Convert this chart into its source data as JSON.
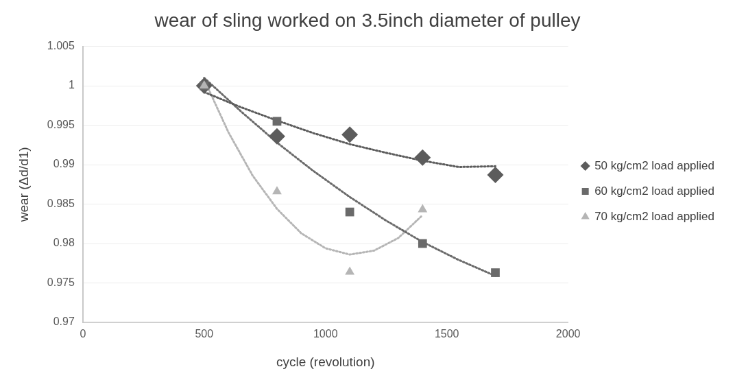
{
  "chart_data": {
    "type": "scatter",
    "title": "wear of sling worked on 3.5inch diameter of pulley",
    "xlabel": "cycle (revolution)",
    "ylabel": "wear (Δd/d1)",
    "xlim": [
      0,
      2000
    ],
    "xticks": [
      0,
      500,
      1000,
      1500,
      2000
    ],
    "ylim": [
      0.97,
      1.005
    ],
    "yticks": [
      0.97,
      0.975,
      0.98,
      0.985,
      0.99,
      0.995,
      1,
      1.005
    ],
    "grid": "y",
    "legend": "right",
    "series": [
      {
        "name": "50 kg/cm2 load applied",
        "color": "#5c5c5c",
        "marker": "diamond",
        "x": [
          500,
          800,
          1100,
          1400,
          1700
        ],
        "values": [
          1.0,
          0.9936,
          0.9938,
          0.9909,
          0.9887
        ]
      },
      {
        "name": "60 kg/cm2 load applied",
        "color": "#6a6a6a",
        "marker": "square",
        "x": [
          500,
          800,
          1100,
          1400,
          1700
        ],
        "values": [
          1.0,
          0.9955,
          0.984,
          0.98,
          0.9763
        ]
      },
      {
        "name": "70 kg/cm2 load applied",
        "color": "#b5b5b5",
        "marker": "triangle",
        "x": [
          500,
          800,
          1100,
          1400
        ],
        "values": [
          1.0,
          0.9866,
          0.9764,
          0.9843
        ]
      },
      {
        "type": "line",
        "color": "#5c5c5c",
        "marker": "none",
        "line_style": "dotted",
        "x": [
          500,
          650,
          800,
          950,
          1100,
          1250,
          1400,
          1550,
          1700
        ],
        "values": [
          0.9992,
          0.9973,
          0.9956,
          0.994,
          0.9926,
          0.9915,
          0.9905,
          0.9897,
          0.9898
        ]
      },
      {
        "type": "line",
        "color": "#6a6a6a",
        "marker": "none",
        "line_style": "dotted",
        "x": [
          500,
          650,
          800,
          950,
          1100,
          1250,
          1400,
          1550,
          1700
        ],
        "values": [
          1.001,
          0.9968,
          0.9928,
          0.9892,
          0.9859,
          0.9829,
          0.9802,
          0.9779,
          0.9759
        ]
      },
      {
        "type": "line",
        "color": "#b5b5b5",
        "marker": "none",
        "line_style": "dotted",
        "x": [
          500,
          600,
          700,
          800,
          900,
          1000,
          1100,
          1200,
          1300,
          1400
        ],
        "values": [
          1.0008,
          0.9941,
          0.9886,
          0.9844,
          0.9813,
          0.9794,
          0.9786,
          0.9791,
          0.9807,
          0.9836
        ]
      }
    ]
  }
}
